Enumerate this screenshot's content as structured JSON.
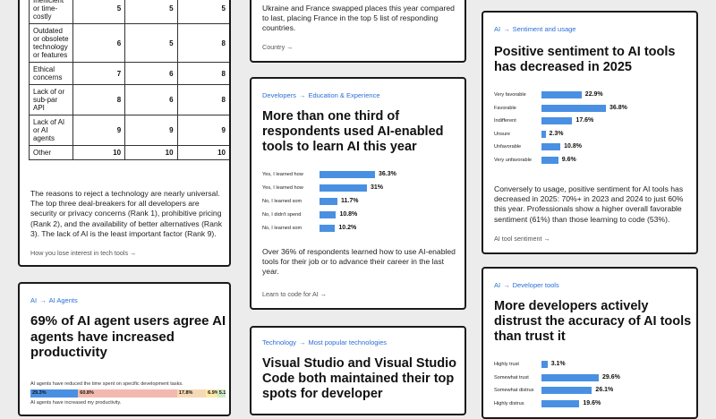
{
  "card_rank": {
    "rows": [
      {
        "label": "Inefficient or time-costly",
        "vals": [
          "5",
          "5",
          "5"
        ]
      },
      {
        "label": "Outdated or obsolete technology or features",
        "vals": [
          "6",
          "5",
          "8"
        ]
      },
      {
        "label": "Ethical concerns",
        "vals": [
          "7",
          "6",
          "8"
        ]
      },
      {
        "label": "Lack of or sub-par API",
        "vals": [
          "8",
          "6",
          "8"
        ]
      },
      {
        "label": "Lack of AI or AI agents",
        "vals": [
          "9",
          "9",
          "9"
        ]
      },
      {
        "label": "Other",
        "vals": [
          "10",
          "10",
          "10"
        ]
      }
    ],
    "body": "The reasons to reject a technology are nearly universal. The top three deal-breakers for all developers are security or privacy concerns (Rank 1), prohibitive pricing (Rank 2), and the availability of better alternatives (Rank 3). The lack of AI is the least important factor (Rank 9).",
    "link": "How you lose interest in tech tools →"
  },
  "card_agents": {
    "crumb_a": "AI",
    "crumb_sep": "→",
    "crumb_b": "AI Agents",
    "headline": "69% of AI agent users agree AI agents have increased productivity",
    "chart_caption": "AI agents have reduced the time spent on specific development tasks.",
    "chart_caption2": "AI agents have increased my productivity.",
    "stack": [
      {
        "label": "29.3%",
        "value": 29.3,
        "color": "#4a90e2"
      },
      {
        "label": "60.8%",
        "value": 60.8,
        "color": "#f4b9ae"
      },
      {
        "label": "17.8%",
        "value": 17.8,
        "color": "#f7d9b5"
      },
      {
        "label": "6.9%",
        "value": 6.9,
        "color": "#fde9a8"
      },
      {
        "label": "5.1",
        "value": 5.1,
        "color": "#cfe8c6"
      }
    ]
  },
  "card_country": {
    "body": "Ukraine and France swapped places this year compared to last, placing France in the top 5 list of responding countries.",
    "link": "Country →"
  },
  "card_learn": {
    "crumb_a": "Developers",
    "crumb_sep": "→",
    "crumb_b": "Education & Experience",
    "headline": "More than one third of respondents used AI-enabled tools to learn AI this year",
    "body": "Over 36% of respondents learned how to use AI-enabled tools for their job or to advance their career in the last year.",
    "link": "Learn to code for AI →"
  },
  "card_tech": {
    "crumb_a": "Technology",
    "crumb_sep": "→",
    "crumb_b": "Most popular technologies",
    "headline": "Visual Studio and Visual Studio Code both maintained their top spots for developer"
  },
  "card_sentiment": {
    "crumb_a": "AI",
    "crumb_sep": "→",
    "crumb_b": "Sentiment and usage",
    "headline": "Positive sentiment to AI tools has decreased in 2025",
    "body": "Conversely to usage, positive sentiment for AI tools has decreased in 2025: 70%+ in 2023 and 2024 to just 60% this year. Professionals show a higher overall favorable sentiment (61%) than those learning to code (53%).",
    "link": "AI tool sentiment →"
  },
  "card_trust": {
    "crumb_a": "AI",
    "crumb_sep": "→",
    "crumb_b": "Developer tools",
    "headline": "More developers actively distrust the accuracy of AI tools than trust it"
  },
  "chart_data": [
    {
      "type": "bar",
      "categories": [
        "Yes, I learned how",
        "Yes, I learned how",
        "No, I learned som",
        "No, I didn't spend",
        "No, I learned som"
      ],
      "values": [
        36.3,
        31,
        11.7,
        10.8,
        10.2
      ],
      "labels": [
        "36.3%",
        "31%",
        "11.7%",
        "10.8%",
        "10.2%"
      ]
    },
    {
      "type": "bar",
      "categories": [
        "Very favorable",
        "Favorable",
        "Indifferent",
        "Unsure",
        "Unfavorable",
        "Very unfavorable"
      ],
      "values": [
        22.9,
        36.8,
        17.6,
        2.3,
        10.8,
        9.6
      ],
      "labels": [
        "22.9%",
        "36.8%",
        "17.6%",
        "2.3%",
        "10.8%",
        "9.6%"
      ]
    },
    {
      "type": "bar",
      "categories": [
        "Highly trust",
        "Somewhat trust",
        "Somewhat distrus",
        "Highly distrus"
      ],
      "values": [
        3.1,
        29.6,
        26.1,
        19.6
      ],
      "labels": [
        "3.1%",
        "29.6%",
        "26.1%",
        "19.6%"
      ]
    }
  ]
}
